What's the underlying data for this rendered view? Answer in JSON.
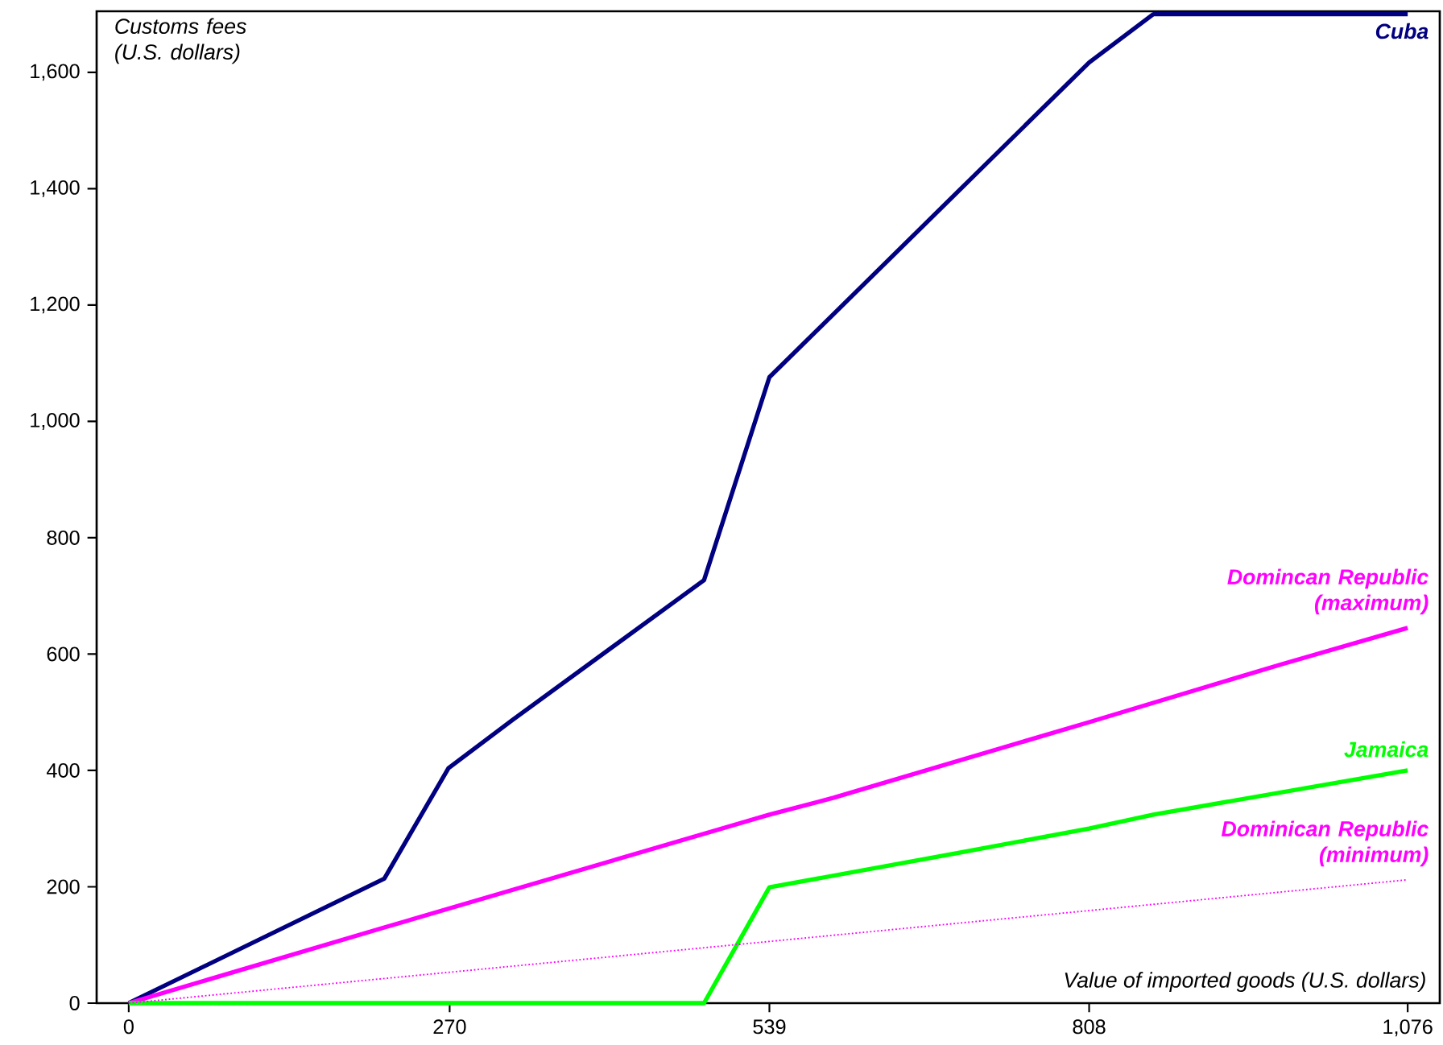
{
  "chart_data": {
    "type": "line",
    "xlabel": "Value of imported goods (U.S. dollars)",
    "ylabel": "Customs fees (U.S. dollars)",
    "xlim": [
      -27,
      1103
    ],
    "ylim": [
      0,
      1705
    ],
    "xticks": [
      0,
      270,
      539,
      808,
      {
        "value": 1076,
        "label": "1,076"
      }
    ],
    "yticks": [
      0,
      200,
      400,
      600,
      800,
      {
        "value": 1000,
        "label": "1,000"
      },
      {
        "value": 1200,
        "label": "1,200"
      },
      {
        "value": 1400,
        "label": "1,400"
      },
      {
        "value": 1600,
        "label": "1,600"
      }
    ],
    "grid": false,
    "legend": false,
    "marker": "none",
    "series": [
      {
        "name": "Cuba",
        "color": "#000080",
        "line_style": "solid",
        "x": [
          0,
          215,
          269,
          323,
          484,
          539,
          808,
          862,
          1076
        ],
        "values": [
          0,
          214,
          404,
          487,
          727,
          1076,
          1617,
          1700,
          1700
        ]
      },
      {
        "name": "Domincan Republic (maximum)",
        "color": "#ff00ff",
        "line_style": "solid",
        "x": [
          0,
          215,
          539,
          593,
          808,
          969,
          1076
        ],
        "values": [
          0,
          130,
          324,
          353,
          483,
          582,
          645
        ]
      },
      {
        "name": "Jamaica",
        "color": "#00ff00",
        "line_style": "solid",
        "x": [
          0,
          484,
          539,
          697,
          808,
          862,
          1076
        ],
        "values": [
          0,
          0,
          199,
          258,
          300,
          324,
          400
        ]
      },
      {
        "name": "Dominican Republic (minimum)",
        "color": "#ff00ff",
        "line_style": "dotted",
        "x": [
          0,
          539,
          1076
        ],
        "values": [
          0,
          106,
          212
        ]
      }
    ]
  }
}
